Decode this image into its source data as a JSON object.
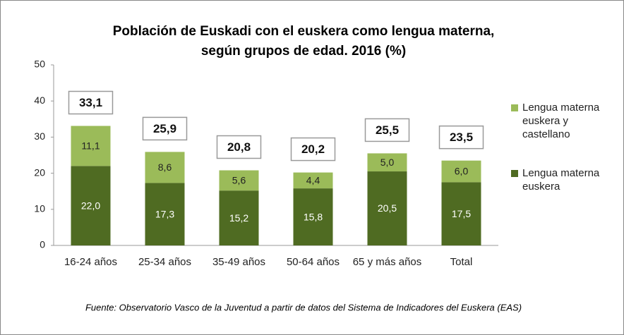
{
  "chart_data": {
    "type": "stacked_bar",
    "title": [
      "Población de Euskadi con el euskera como lengua materna,",
      "según grupos de edad. 2016 (%)"
    ],
    "categories": [
      "16-24 años",
      "25-34 años",
      "35-49 años",
      "50-64 años",
      "65 y más años",
      "Total"
    ],
    "series": [
      {
        "name": "Lengua materna euskera",
        "color": "#4f6b22",
        "values": [
          22.0,
          17.3,
          15.2,
          15.8,
          20.5,
          17.5
        ],
        "value_labels": [
          "22,0",
          "17,3",
          "15,2",
          "15,8",
          "20,5",
          "17,5"
        ]
      },
      {
        "name": "Lengua materna euskera y castellano",
        "color": "#9bbb59",
        "values": [
          11.1,
          8.6,
          5.6,
          4.4,
          5.0,
          6.0
        ],
        "value_labels": [
          "11,1",
          "8,6",
          "5,6",
          "4,4",
          "5,0",
          "6,0"
        ]
      }
    ],
    "totals": [
      33.1,
      25.9,
      20.8,
      20.2,
      25.5,
      23.5
    ],
    "total_labels": [
      "33,1",
      "25,9",
      "20,8",
      "20,2",
      "25,5",
      "23,5"
    ],
    "ylim": [
      0,
      50
    ],
    "yticks": [
      0,
      10,
      20,
      30,
      40,
      50
    ],
    "source": "Fuente: Observatorio Vasco de la Juventud a partir de datos del Sistema de Indicadores del Euskera (EAS)"
  }
}
